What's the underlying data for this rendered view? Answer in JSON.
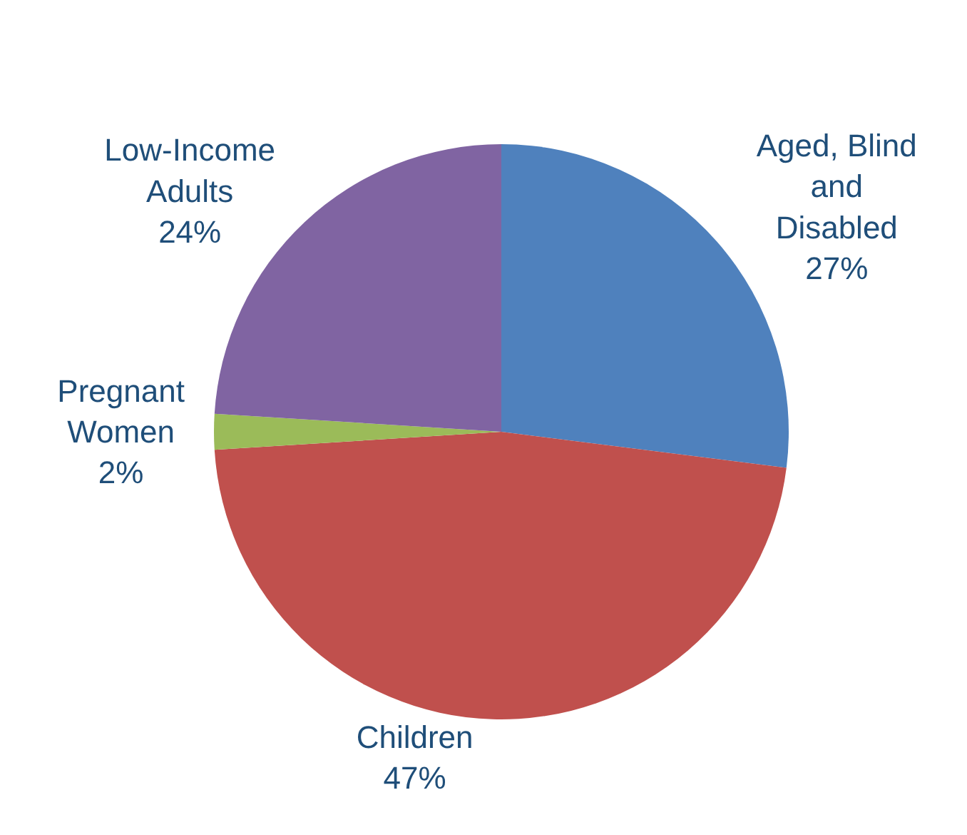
{
  "chart_data": {
    "type": "pie",
    "categories": [
      "Aged, Blind and Disabled",
      "Children",
      "Pregnant Women",
      "Low-Income Adults"
    ],
    "values": [
      27,
      47,
      2,
      24
    ],
    "value_labels": [
      "27%",
      "47%",
      "2%",
      "24%"
    ],
    "colors": [
      "#4f81bd",
      "#c0504d",
      "#9bbb59",
      "#8064a2"
    ],
    "legend": false
  }
}
